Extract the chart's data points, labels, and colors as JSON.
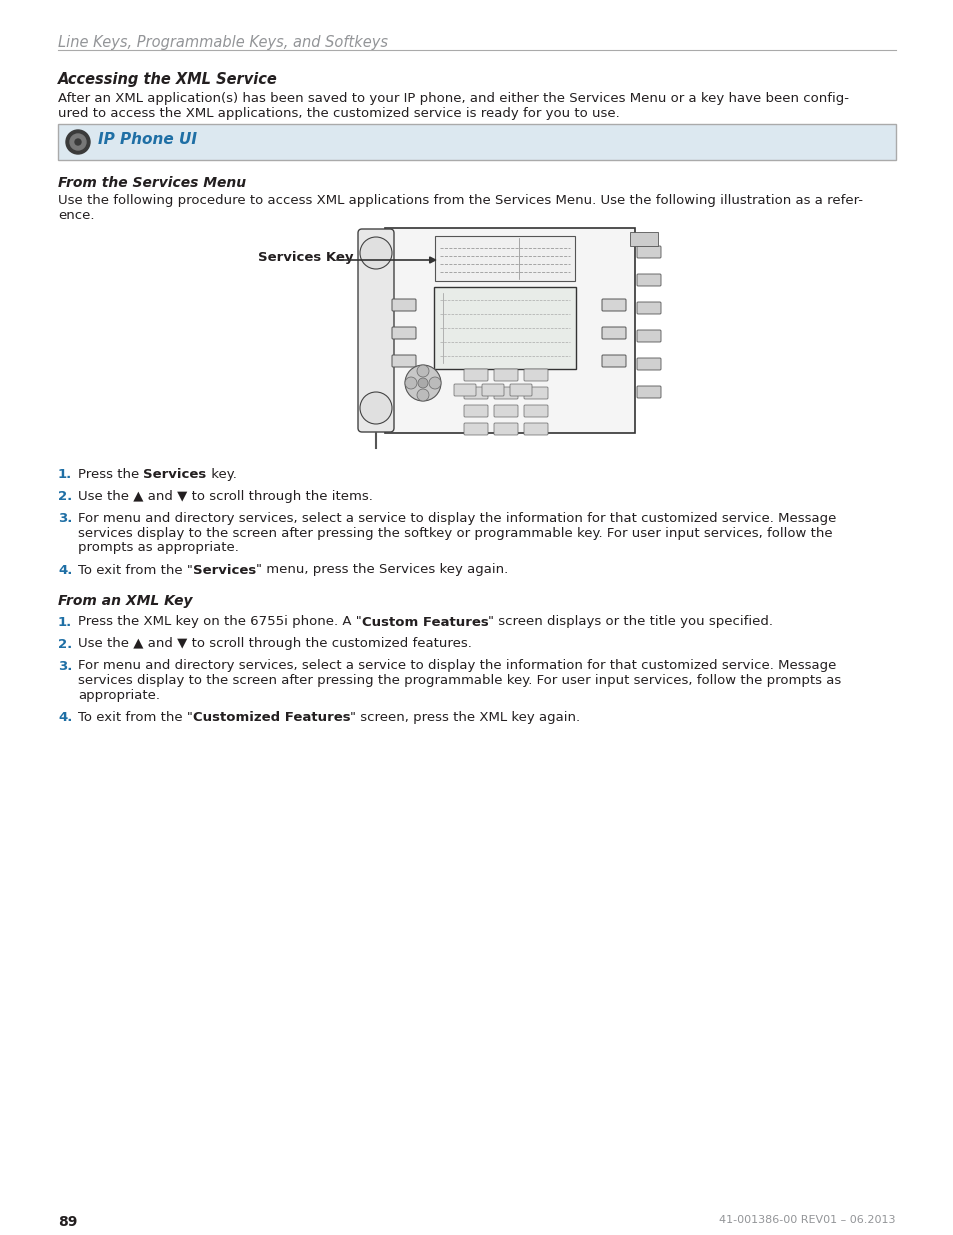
{
  "page_title": "Line Keys, Programmable Keys, and Softkeys",
  "section_title": "Accessing the XML Service",
  "section_intro_1": "After an XML application(s) has been saved to your IP phone, and either the Services Menu or a key have been config-",
  "section_intro_2": "ured to access the XML applications, the customized service is ready for you to use.",
  "ui_label": "IP Phone UI",
  "subsection1_title": "From the Services Menu",
  "subsection1_intro_1": "Use the following procedure to access XML applications from the Services Menu. Use the following illustration as a refer-",
  "subsection1_intro_2": "ence.",
  "services_key_label": "Services Key",
  "subsection2_title": "From an XML Key",
  "page_number": "89",
  "footer_right": "41-001386-00 REV01 – 06.2013",
  "bg_color": "#ffffff",
  "text_color": "#231f20",
  "title_color": "#939598",
  "heading_color": "#231f20",
  "blue_color": "#1f6fa5",
  "step_num_color": "#1f6fa5",
  "box_bg": "#dce8f0",
  "box_border": "#aaaaaa",
  "line_color": "#aaaaaa"
}
